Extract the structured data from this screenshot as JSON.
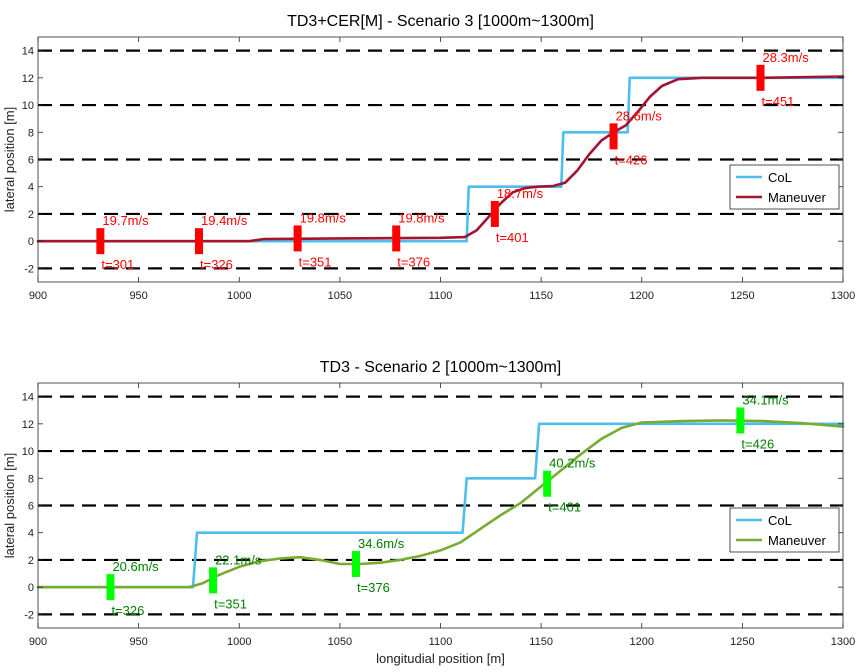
{
  "chart_data": [
    {
      "type": "line",
      "title": "TD3+CER[M] - Scenario 3 [1000m~1300m]",
      "xlabel": "",
      "ylabel": "lateral position [m]",
      "xlim": [
        900,
        1300
      ],
      "ylim": [
        -3,
        15
      ],
      "xticks": [
        900,
        950,
        1000,
        1050,
        1100,
        1150,
        1200,
        1250,
        1300
      ],
      "yticks": [
        -2,
        0,
        2,
        4,
        6,
        8,
        10,
        12,
        14
      ],
      "lane_lines": [
        -2,
        2,
        6,
        10,
        14
      ],
      "legend": {
        "location": "right",
        "entries": [
          "CoL",
          "Maneuver"
        ]
      },
      "colors": {
        "col": "#4dbeee",
        "maneuver": "#a2142f",
        "marker": "#ff0000",
        "label": "#ff0000"
      },
      "series": [
        {
          "name": "CoL",
          "x": [
            900,
            1113,
            1114,
            1160,
            1161,
            1193,
            1194,
            1300
          ],
          "y": [
            0,
            0,
            4,
            4,
            8,
            8,
            12,
            12
          ]
        },
        {
          "name": "Maneuver",
          "x": [
            900,
            1005,
            1012,
            1050,
            1100,
            1112,
            1118,
            1124,
            1130,
            1136,
            1142,
            1148,
            1156,
            1162,
            1168,
            1174,
            1180,
            1186,
            1192,
            1198,
            1204,
            1210,
            1218,
            1230,
            1260,
            1300
          ],
          "y": [
            0,
            0,
            0.15,
            0.2,
            0.25,
            0.3,
            0.8,
            1.8,
            2.8,
            3.6,
            3.9,
            4.0,
            4.05,
            4.3,
            5.2,
            6.4,
            7.4,
            8.0,
            8.5,
            9.5,
            10.6,
            11.4,
            11.9,
            12.0,
            12.0,
            12.1
          ]
        }
      ],
      "markers": [
        {
          "x": 931,
          "y": 0,
          "speed": "19.7m/s",
          "time": "t=301"
        },
        {
          "x": 980,
          "y": 0,
          "speed": "19.4m/s",
          "time": "t=326"
        },
        {
          "x": 1029,
          "y": 0.2,
          "speed": "19.8m/s",
          "time": "t=351"
        },
        {
          "x": 1078,
          "y": 0.2,
          "speed": "19.8m/s",
          "time": "t=376"
        },
        {
          "x": 1127,
          "y": 2.0,
          "speed": "18.7m/s",
          "time": "t=401"
        },
        {
          "x": 1186,
          "y": 7.7,
          "speed": "28.6m/s",
          "time": "t=426"
        },
        {
          "x": 1259,
          "y": 12.0,
          "speed": "28.3m/s",
          "time": "t=451"
        }
      ]
    },
    {
      "type": "line",
      "title": "TD3 - Scenario 2 [1000m~1300m]",
      "xlabel": "longitudial position [m]",
      "ylabel": "lateral position [m]",
      "xlim": [
        900,
        1300
      ],
      "ylim": [
        -3,
        15
      ],
      "xticks": [
        900,
        950,
        1000,
        1050,
        1100,
        1150,
        1200,
        1250,
        1300
      ],
      "yticks": [
        -2,
        0,
        2,
        4,
        6,
        8,
        10,
        12,
        14
      ],
      "lane_lines": [
        -2,
        2,
        6,
        10,
        14
      ],
      "legend": {
        "location": "right",
        "entries": [
          "CoL",
          "Maneuver"
        ]
      },
      "colors": {
        "col": "#4dbeee",
        "maneuver": "#77ac30",
        "marker": "#00ff00",
        "label": "#008000"
      },
      "series": [
        {
          "name": "CoL",
          "x": [
            900,
            977,
            979,
            1111,
            1113,
            1147,
            1149,
            1300
          ],
          "y": [
            0,
            0,
            4,
            4,
            8,
            8,
            12,
            12
          ]
        },
        {
          "name": "Maneuver",
          "x": [
            900,
            975,
            982,
            990,
            1000,
            1010,
            1020,
            1030,
            1040,
            1050,
            1060,
            1070,
            1080,
            1090,
            1100,
            1110,
            1120,
            1130,
            1140,
            1150,
            1160,
            1170,
            1180,
            1190,
            1200,
            1220,
            1240,
            1260,
            1280,
            1300
          ],
          "y": [
            0,
            0,
            0.3,
            0.9,
            1.5,
            1.9,
            2.1,
            2.2,
            2.0,
            1.7,
            1.7,
            1.8,
            2.0,
            2.3,
            2.7,
            3.3,
            4.3,
            5.3,
            6.2,
            7.4,
            8.6,
            9.8,
            10.9,
            11.7,
            12.1,
            12.2,
            12.25,
            12.2,
            12.05,
            11.8
          ]
        }
      ],
      "markers": [
        {
          "x": 936,
          "y": 0,
          "speed": "20.6m/s",
          "time": "t=326"
        },
        {
          "x": 987,
          "y": 0.5,
          "speed": "22.1m/s",
          "time": "t=351"
        },
        {
          "x": 1058,
          "y": 1.7,
          "speed": "34.6m/s",
          "time": "t=376"
        },
        {
          "x": 1153,
          "y": 7.6,
          "speed": "40.2m/s",
          "time": "t=401"
        },
        {
          "x": 1249,
          "y": 12.25,
          "speed": "34.1m/s",
          "time": "t=426"
        }
      ]
    }
  ]
}
